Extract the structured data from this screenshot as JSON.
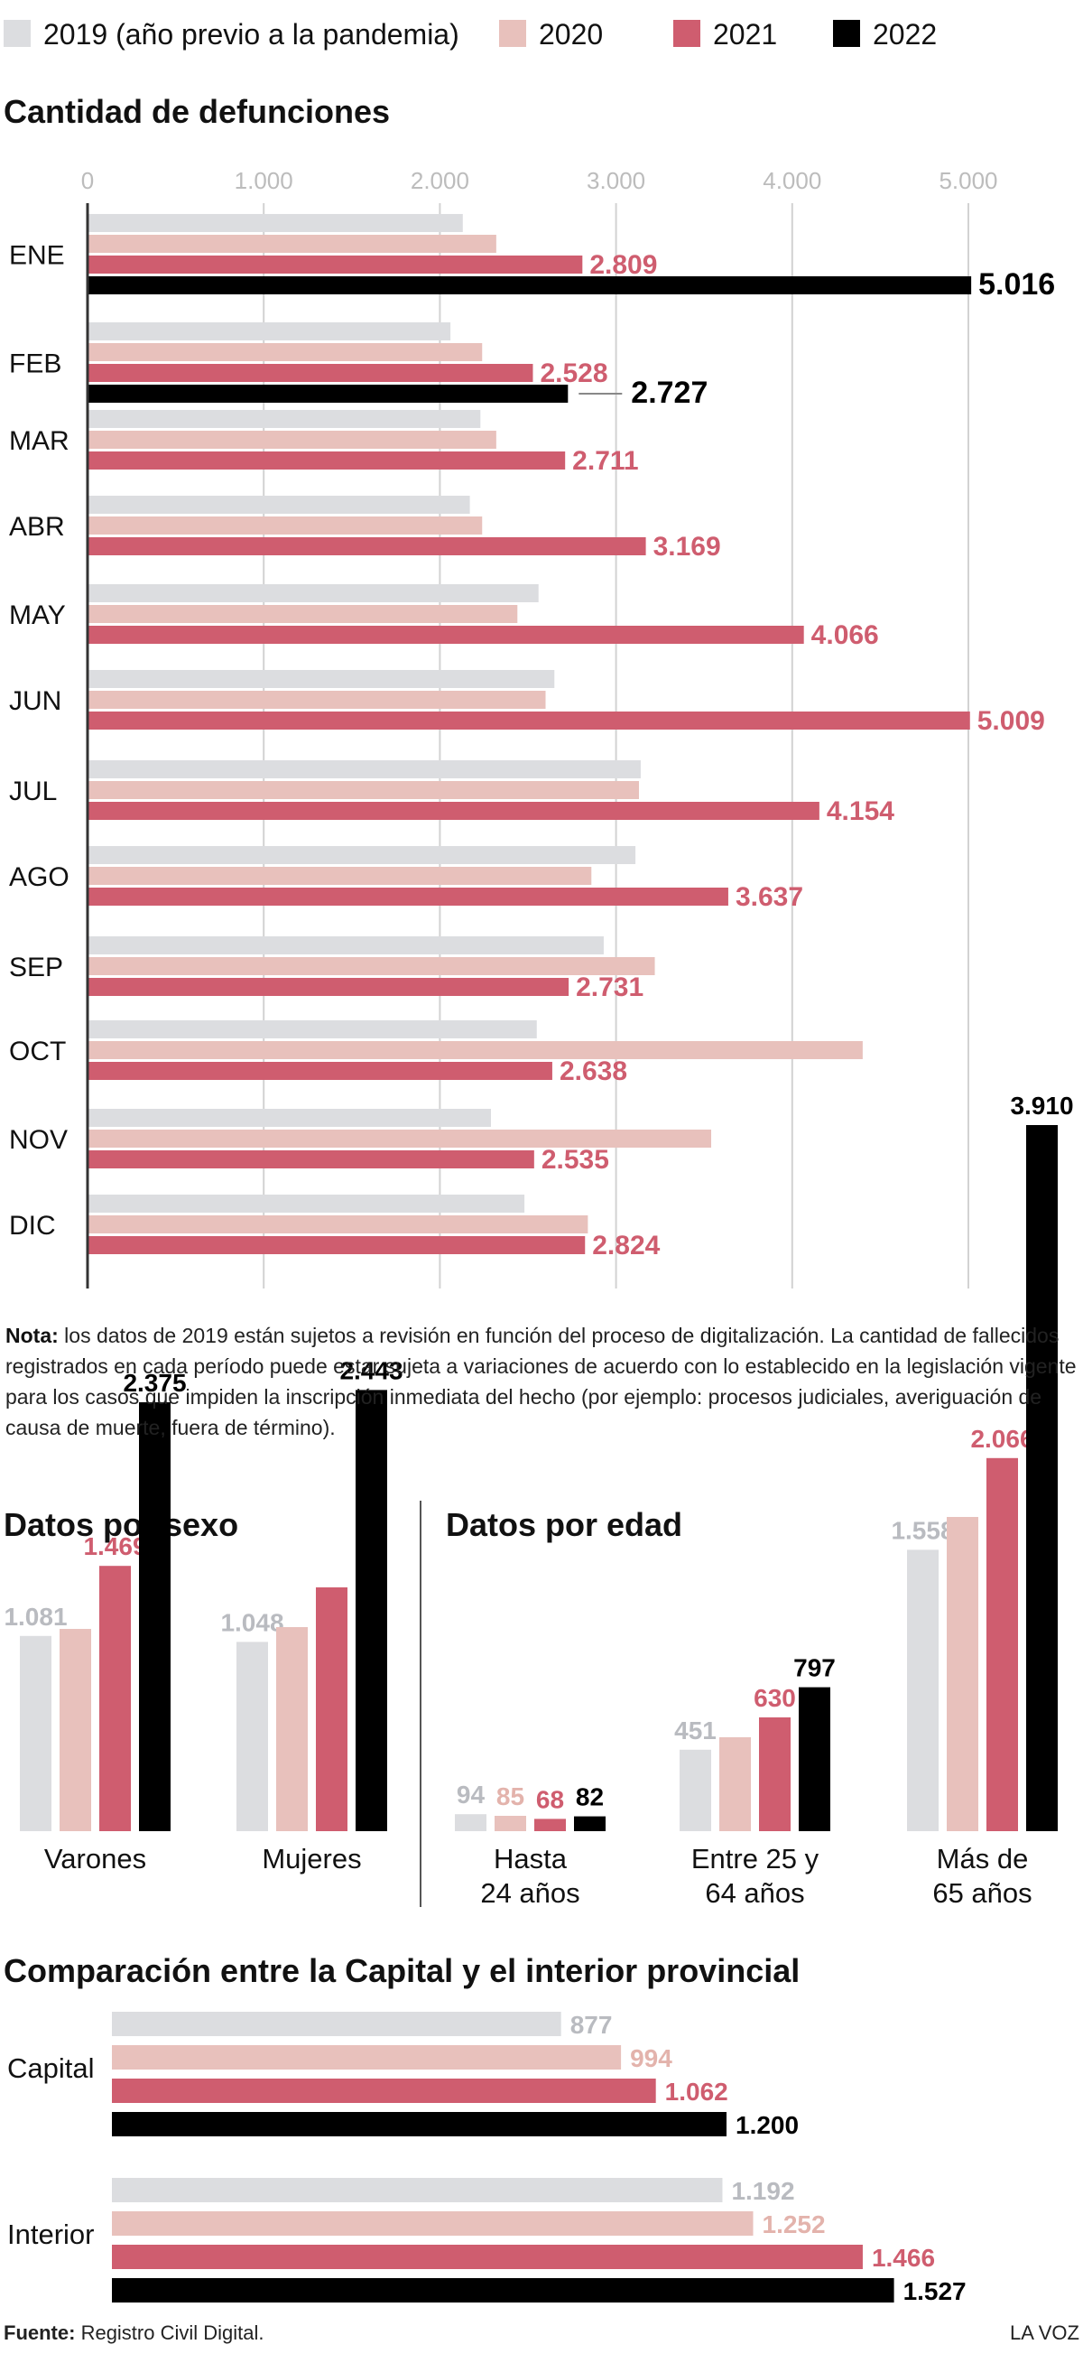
{
  "legend": [
    {
      "label": "2019 (año previo a la pandemia)",
      "color": "#dcdde0"
    },
    {
      "label": "2020",
      "color": "#e8c1bc"
    },
    {
      "label": "2021",
      "color": "#cf5d6f"
    },
    {
      "label": "2022",
      "color": "#000000"
    }
  ],
  "chart_data": [
    {
      "type": "bar",
      "orientation": "horizontal",
      "title": "Cantidad de defunciones",
      "xlim": [
        0,
        5000
      ],
      "ticks": [
        "0",
        "1.000",
        "2.000",
        "3.000",
        "4.000",
        "5.000"
      ],
      "grid": true,
      "categories": [
        "ENE",
        "FEB",
        "MAR",
        "ABR",
        "MAY",
        "JUN",
        "JUL",
        "AGO",
        "SEP",
        "OCT",
        "NOV",
        "DIC"
      ],
      "series": [
        {
          "name": "2019 (año previo a la pandemia)",
          "values": [
            2130,
            2060,
            2230,
            2170,
            2560,
            2650,
            3140,
            3110,
            2930,
            2550,
            2290,
            2480
          ]
        },
        {
          "name": "2020",
          "values": [
            2320,
            2240,
            2320,
            2240,
            2440,
            2600,
            3130,
            2860,
            3220,
            4400,
            3540,
            2840
          ]
        },
        {
          "name": "2021",
          "values": [
            2809,
            2528,
            2711,
            3169,
            4066,
            5009,
            4154,
            3637,
            2731,
            2638,
            2535,
            2824
          ]
        },
        {
          "name": "2022",
          "values": [
            5016,
            2727,
            null,
            null,
            null,
            null,
            null,
            null,
            null,
            null,
            null,
            null
          ]
        }
      ],
      "data_labels": {
        "2021": [
          "2.809",
          "2.528",
          "2.711",
          "3.169",
          "4.066",
          "5.009",
          "4.154",
          "3.637",
          "2.731",
          "2.638",
          "2.535",
          "2.824"
        ],
        "2022": [
          "5.016",
          "2.727",
          "",
          "",
          "",
          "",
          "",
          "",
          "",
          "",
          "",
          ""
        ]
      }
    },
    {
      "type": "bar",
      "title": "Datos por sexo",
      "categories": [
        "Varones",
        "Mujeres"
      ],
      "series": [
        {
          "name": "2019 (año previo a la pandemia)",
          "values": [
            1081,
            1048
          ]
        },
        {
          "name": "2020",
          "values": [
            1120,
            1130
          ]
        },
        {
          "name": "2021",
          "values": [
            1469,
            1350
          ]
        },
        {
          "name": "2022",
          "values": [
            2375,
            2443
          ]
        }
      ],
      "data_labels": {
        "2019 (año previo a la pandemia)": [
          "1.081",
          "1.048"
        ],
        "2020": [
          "",
          ""
        ],
        "2021": [
          "1.469",
          ""
        ],
        "2022": [
          "2.375",
          "2.443"
        ]
      }
    },
    {
      "type": "bar",
      "title": "Datos por edad",
      "categories": [
        "Hasta 24 años",
        "Entre 25 y 64 años",
        "Más de 65 años"
      ],
      "category_lines": [
        [
          "Hasta",
          "24 años"
        ],
        [
          "Entre 25 y",
          "64 años"
        ],
        [
          "Más de",
          "65 años"
        ]
      ],
      "series": [
        {
          "name": "2019 (año previo a la pandemia)",
          "values": [
            94,
            451,
            1558
          ]
        },
        {
          "name": "2020",
          "values": [
            85,
            520,
            1740
          ]
        },
        {
          "name": "2021",
          "values": [
            68,
            630,
            2066
          ]
        },
        {
          "name": "2022",
          "values": [
            82,
            797,
            3910
          ]
        }
      ],
      "data_labels": {
        "2019 (año previo a la pandemia)": [
          "94",
          "451",
          "1.558"
        ],
        "2020": [
          "85",
          "",
          ""
        ],
        "2021": [
          "68",
          "630",
          "2.066"
        ],
        "2022": [
          "82",
          "797",
          "3.910"
        ]
      }
    },
    {
      "type": "bar",
      "orientation": "horizontal",
      "title": "Comparación entre la Capital y el interior provincial",
      "categories": [
        "Capital",
        "Interior"
      ],
      "series": [
        {
          "name": "2019 (año previo a la pandemia)",
          "values": [
            877,
            1192
          ]
        },
        {
          "name": "2020",
          "values": [
            994,
            1252
          ]
        },
        {
          "name": "2021",
          "values": [
            1062,
            1466
          ]
        },
        {
          "name": "2022",
          "values": [
            1200,
            1527
          ]
        }
      ],
      "data_labels": {
        "2019 (año previo a la pandemia)": [
          "877",
          "1.192"
        ],
        "2020": [
          "994",
          "1.252"
        ],
        "2021": [
          "1.062",
          "1.466"
        ],
        "2022": [
          "1.200",
          "1.527"
        ]
      }
    }
  ],
  "note": {
    "label": "Nota:",
    "text": " los datos de 2019 están sujetos a revisión en función del proceso de digitalización. La cantidad de fallecidos registrados en cada período puede estar sujeta a variaciones de acuerdo con lo establecido en la legislación vigente para los casos que impiden la inscripción inmediata del hecho (por ejemplo: procesos judiciales, averiguación de causa de muerte, fuera de término)."
  },
  "footer": {
    "source_label": "Fuente:",
    "source_text": " Registro Civil Digital.",
    "brand": "LA VOZ"
  }
}
